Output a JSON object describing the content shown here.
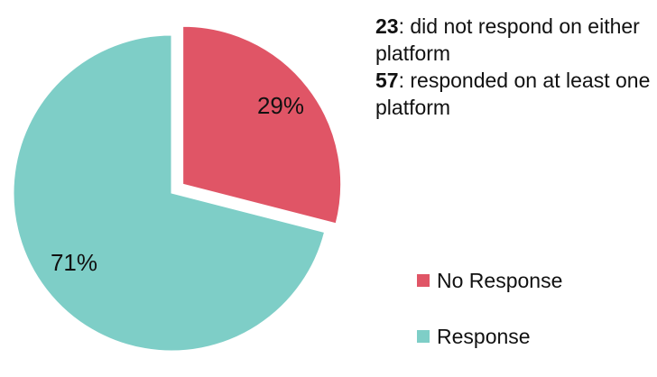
{
  "chart_data": {
    "type": "pie",
    "slices": [
      {
        "label": "No Response",
        "value": 29,
        "value_label": "29%",
        "color": "#e05566",
        "exploded": true
      },
      {
        "label": "Response",
        "value": 71,
        "value_label": "71%",
        "color": "#7ecec7",
        "exploded": false
      }
    ],
    "legend": {
      "placement": "bottom-right",
      "entries": [
        "No Response",
        "Response"
      ]
    },
    "annotations": [
      {
        "count": "23",
        "text": ": did not respond on either platform"
      },
      {
        "count": "57",
        "text": ": responded on at least one platform"
      }
    ]
  }
}
